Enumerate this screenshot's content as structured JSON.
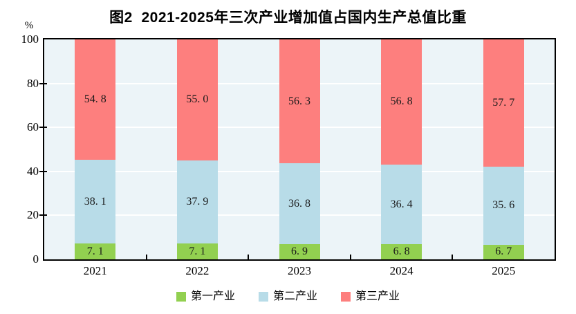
{
  "chart": {
    "plot_background": "#ECF4F8",
    "border_color": "#000000",
    "gridline_color": "#FFFFFF",
    "text_color": "#000000"
  },
  "chart_data": {
    "type": "bar",
    "stacked": true,
    "title": "图2  2021-2025年三次产业增加值占国内生产总值比重",
    "ylabel": "%",
    "ylim": [
      0,
      100
    ],
    "yticks": [
      0,
      20,
      40,
      60,
      80,
      100
    ],
    "ytick_labels": [
      "0",
      "20",
      "40",
      "60",
      "80",
      "100"
    ],
    "grid": true,
    "legend_position": "bottom",
    "categories": [
      "2021",
      "2022",
      "2023",
      "2024",
      "2025"
    ],
    "series": [
      {
        "name": "第一产业",
        "color": "#92D050",
        "values": [
          7.1,
          7.1,
          6.9,
          6.8,
          6.7
        ],
        "labels": [
          "7. 1",
          "7. 1",
          "6. 9",
          "6. 8",
          "6. 7"
        ]
      },
      {
        "name": "第二产业",
        "color": "#B8DCE8",
        "values": [
          38.1,
          37.9,
          36.8,
          36.4,
          35.6
        ],
        "labels": [
          "38. 1",
          "37. 9",
          "36. 8",
          "36. 4",
          "35. 6"
        ]
      },
      {
        "name": "第三产业",
        "color": "#FD7F7E",
        "values": [
          54.8,
          55.0,
          56.3,
          56.8,
          57.7
        ],
        "labels": [
          "54. 8",
          "55. 0",
          "56. 3",
          "56. 8",
          "57. 7"
        ]
      }
    ]
  }
}
